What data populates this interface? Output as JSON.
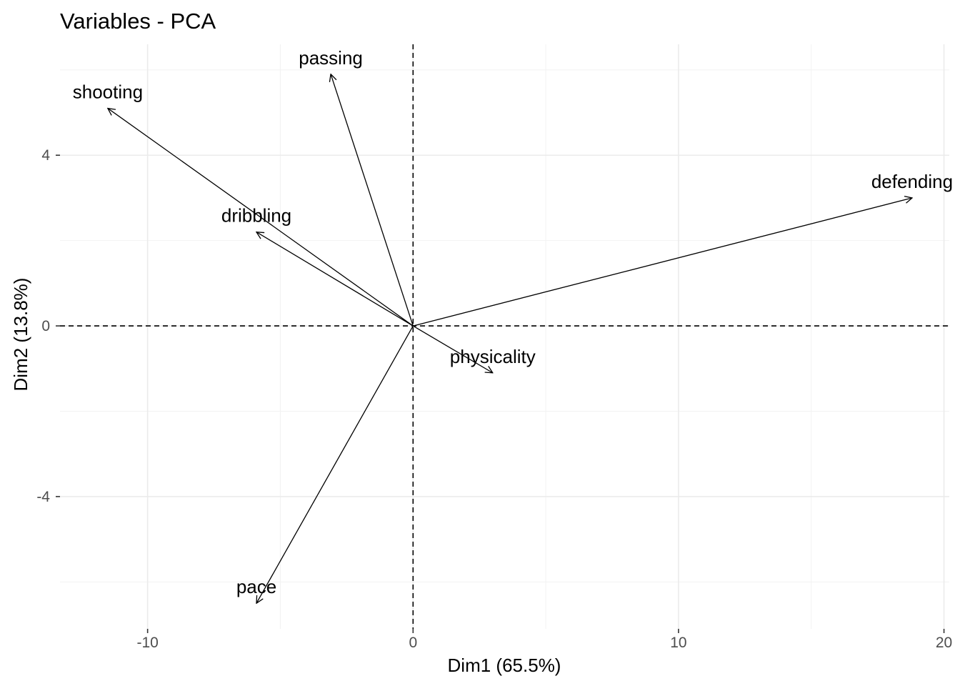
{
  "chart_data": {
    "type": "scatter",
    "subtype": "pca-variable-arrows",
    "title": "Variables - PCA",
    "xlabel": "Dim1 (65.5%)",
    "ylabel": "Dim2 (13.8%)",
    "xlim": [
      -13.3,
      20.2
    ],
    "ylim": [
      -7.1,
      6.6
    ],
    "xticks": [
      -10,
      0,
      10,
      20
    ],
    "yticks": [
      -4,
      0,
      4
    ],
    "xtick_labels": [
      "-10",
      "0",
      "10",
      "20"
    ],
    "ytick_labels": [
      "-4",
      "0",
      "4"
    ],
    "grid": true,
    "legend": "none",
    "zero_lines": "dashed",
    "variables": [
      {
        "name": "passing",
        "x": -3.1,
        "y": 5.9
      },
      {
        "name": "shooting",
        "x": -11.5,
        "y": 5.1
      },
      {
        "name": "defending",
        "x": 18.8,
        "y": 3.0
      },
      {
        "name": "dribbling",
        "x": -5.9,
        "y": 2.2
      },
      {
        "name": "physicality",
        "x": 3.0,
        "y": -1.1
      },
      {
        "name": "pace",
        "x": -5.9,
        "y": -6.5
      }
    ]
  }
}
